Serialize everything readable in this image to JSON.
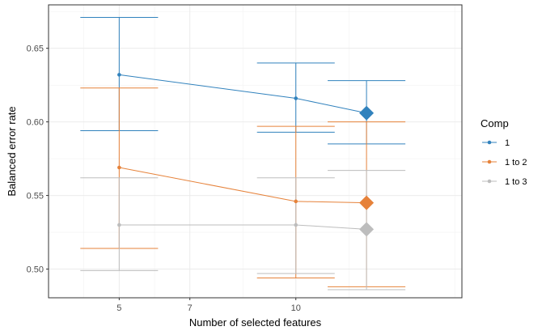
{
  "chart_data": {
    "type": "line",
    "xlabel": "Number of selected features",
    "ylabel": "Balanced error rate",
    "xlim": [
      3.0,
      14.7
    ],
    "ylim": [
      0.4805,
      0.6795
    ],
    "x_ticks": [
      5,
      7,
      10
    ],
    "y_ticks": [
      0.5,
      0.55,
      0.6,
      0.65
    ],
    "y_tick_labels": [
      "0.50",
      "0.55",
      "0.60",
      "0.65"
    ],
    "grid": true,
    "legend": {
      "title": "Comp",
      "position": "right"
    },
    "series": [
      {
        "name": "1",
        "color": "#3182bd",
        "x": [
          5,
          10,
          12
        ],
        "y": [
          0.632,
          0.616,
          0.606
        ],
        "err_low": [
          0.594,
          0.593,
          0.585
        ],
        "err_high": [
          0.671,
          0.64,
          0.628
        ],
        "err_half_width": 1.1
      },
      {
        "name": "1 to 2",
        "color": "#e6823a",
        "x": [
          5,
          10,
          12
        ],
        "y": [
          0.569,
          0.546,
          0.545
        ],
        "err_low": [
          0.514,
          0.494,
          0.488
        ],
        "err_high": [
          0.623,
          0.597,
          0.6
        ],
        "err_half_width": 1.1
      },
      {
        "name": "1 to 3",
        "color": "#bdbdbd",
        "x": [
          5,
          10,
          12
        ],
        "y": [
          0.53,
          0.53,
          0.527
        ],
        "err_low": [
          0.499,
          0.497,
          0.486
        ],
        "err_high": [
          0.562,
          0.562,
          0.567
        ],
        "err_half_width": 1.1
      }
    ],
    "highlighted_point": {
      "x": 12,
      "shape": "diamond"
    }
  }
}
